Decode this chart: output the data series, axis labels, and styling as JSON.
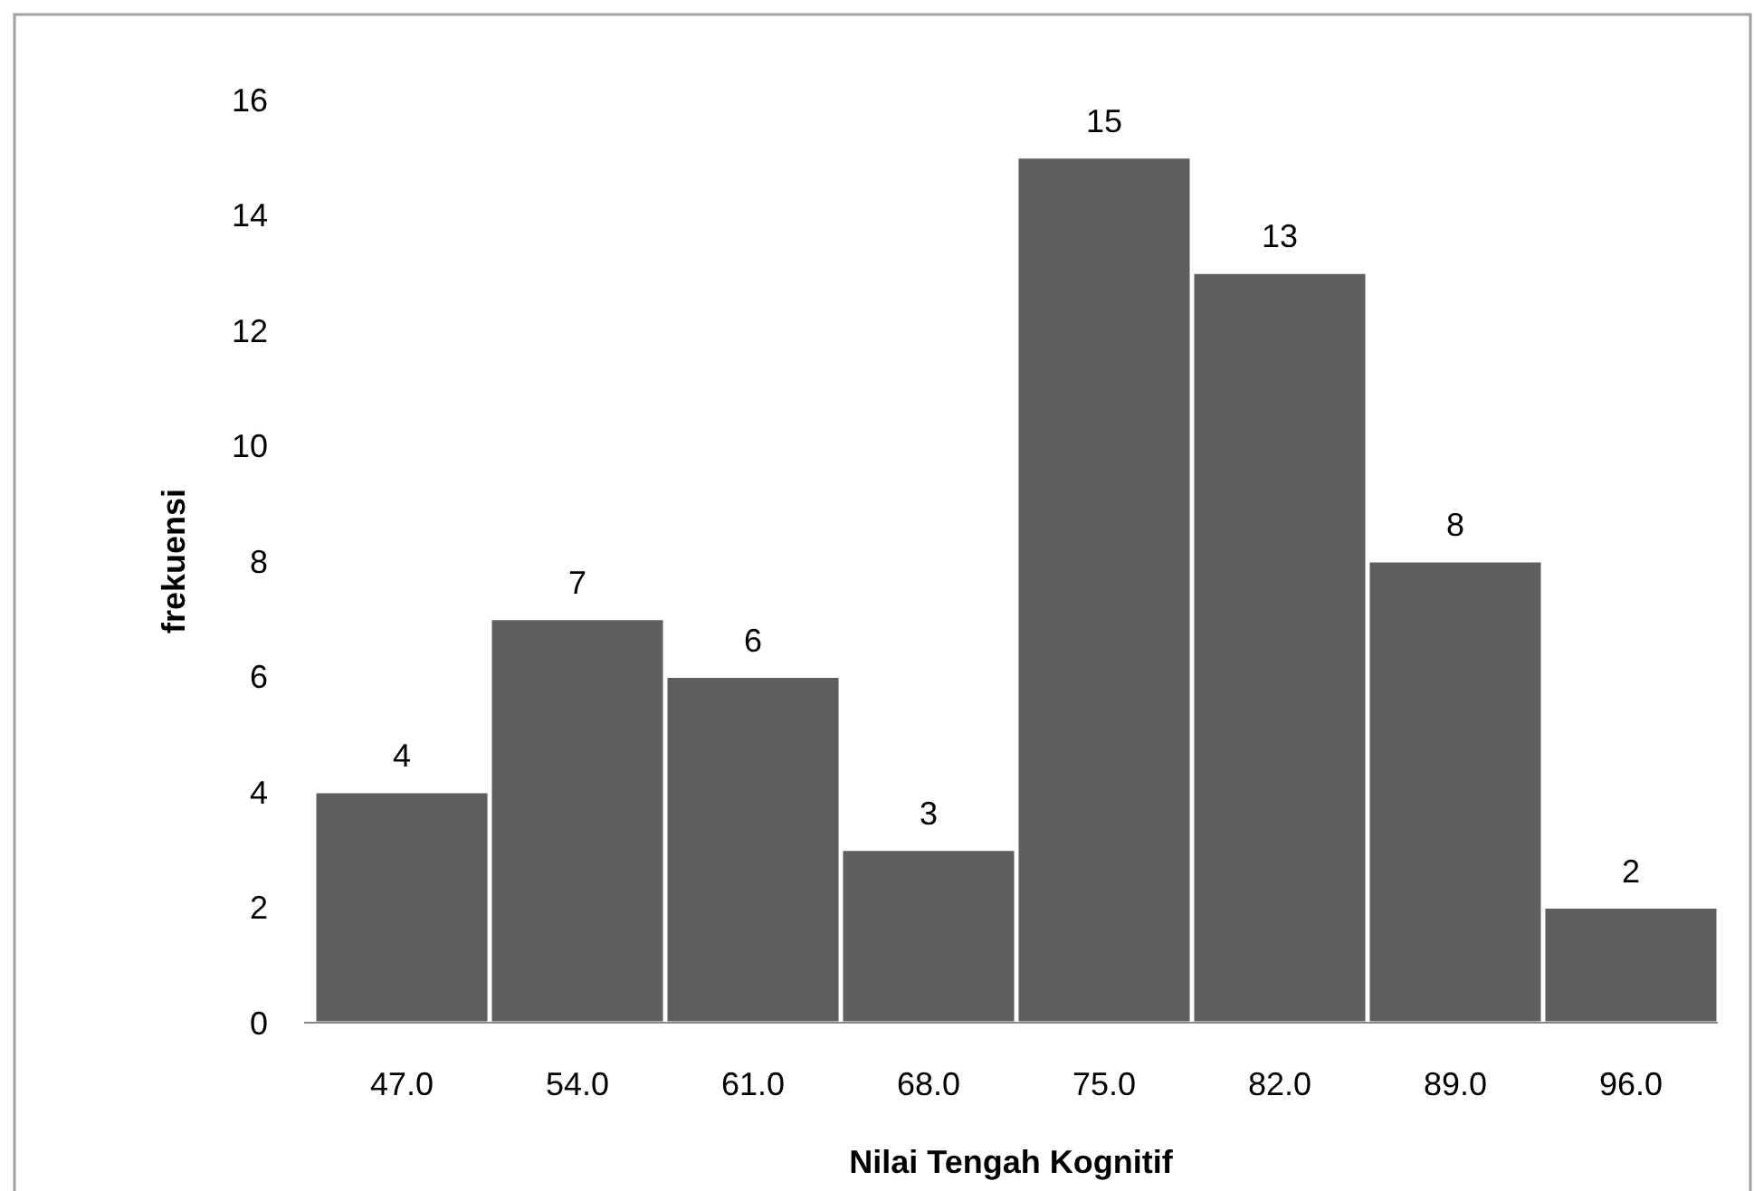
{
  "chart_data": {
    "type": "bar",
    "xlabel": "Nilai Tengah Kognitif",
    "ylabel": "frekuensi",
    "categories": [
      "47.0",
      "54.0",
      "61.0",
      "68.0",
      "75.0",
      "82.0",
      "89.0",
      "96.0"
    ],
    "values": [
      4,
      7,
      6,
      3,
      15,
      13,
      8,
      2
    ],
    "color": "#5f5f5f",
    "ylim": [
      0,
      16
    ],
    "yticks": [
      0,
      2,
      4,
      6,
      8,
      10,
      12,
      14,
      16
    ],
    "grid": false,
    "data_labels": true
  }
}
